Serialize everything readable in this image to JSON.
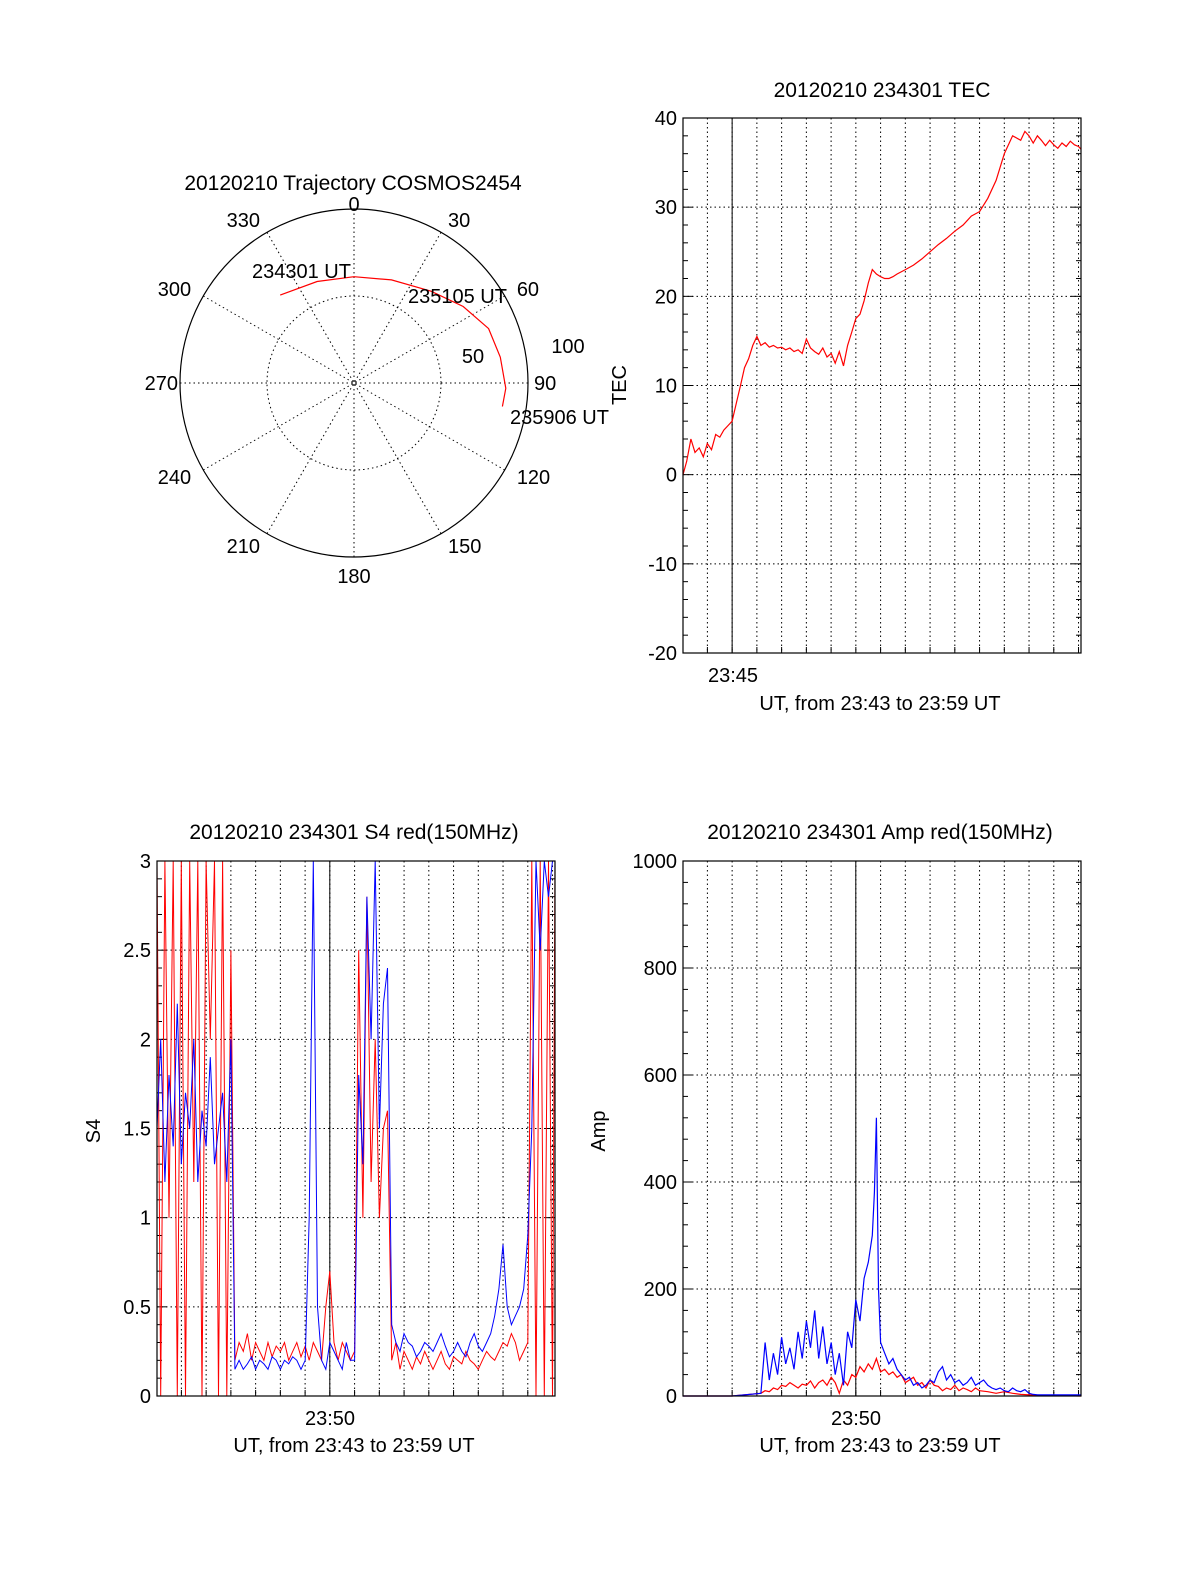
{
  "chart_data": [
    {
      "type": "polar",
      "title": "20120210 Trajectory COSMOS2454",
      "azimuth_labels": [
        "0",
        "30",
        "60",
        "90",
        "120",
        "150",
        "180",
        "210",
        "240",
        "270",
        "300",
        "330"
      ],
      "elevation_labels": [
        "50",
        "100"
      ],
      "trajectory_color": "#ff0000",
      "trajectory": [
        {
          "azimuth": 320,
          "zenith": 68
        },
        {
          "azimuth": 340,
          "zenith": 64
        },
        {
          "azimuth": 0,
          "zenith": 63
        },
        {
          "azimuth": 20,
          "zenith": 65
        },
        {
          "azimuth": 40,
          "zenith": 71
        },
        {
          "azimuth": 55,
          "zenith": 79
        },
        {
          "azimuth": 68,
          "zenith": 86
        },
        {
          "azimuth": 80,
          "zenith": 88
        },
        {
          "azimuth": 92,
          "zenith": 90
        },
        {
          "azimuth": 99,
          "zenith": 89
        }
      ],
      "annotations": [
        "234301 UT",
        "235105 UT",
        "235906 UT"
      ]
    },
    {
      "type": "line",
      "title": "20120210 234301 TEC",
      "xlabel": "UT, from 23:43 to 23:59 UT",
      "ylabel": "TEC",
      "xlim": [
        23.7169,
        23.985
      ],
      "ylim": [
        -20,
        40
      ],
      "yticks": [
        -20,
        -10,
        0,
        10,
        20,
        30,
        40
      ],
      "xtick_label": "23:45",
      "xtick_value": 23.75,
      "series": [
        {
          "color": "#ff0000",
          "x": [
            23.7169,
            23.7194,
            23.7222,
            23.725,
            23.7278,
            23.7306,
            23.7333,
            23.7361,
            23.7389,
            23.7417,
            23.7444,
            23.7472,
            23.75,
            23.7528,
            23.7556,
            23.7583,
            23.7611,
            23.7639,
            23.7667,
            23.7694,
            23.7722,
            23.775,
            23.7778,
            23.7806,
            23.7833,
            23.7861,
            23.7889,
            23.7917,
            23.7944,
            23.7972,
            23.8,
            23.8028,
            23.8056,
            23.8083,
            23.8111,
            23.8139,
            23.8167,
            23.8194,
            23.8222,
            23.825,
            23.8278,
            23.8306,
            23.8333,
            23.8361,
            23.8389,
            23.8417,
            23.8444,
            23.8472,
            23.85,
            23.8528,
            23.8556,
            23.8583,
            23.8611,
            23.8667,
            23.8722,
            23.8778,
            23.8833,
            23.8889,
            23.8944,
            23.9,
            23.9056,
            23.9111,
            23.9167,
            23.9222,
            23.9278,
            23.9333,
            23.9389,
            23.9444,
            23.9472,
            23.95,
            23.9528,
            23.9556,
            23.9583,
            23.9611,
            23.9639,
            23.9667,
            23.9694,
            23.9722,
            23.975,
            23.9778,
            23.9806,
            23.9833,
            23.985
          ],
          "y": [
            0,
            1.5,
            4,
            2.5,
            3,
            2,
            3.5,
            2.8,
            4.5,
            4.2,
            5,
            5.5,
            6,
            8,
            10,
            12,
            13,
            14.5,
            15.5,
            14.5,
            14.8,
            14.3,
            14.5,
            14.2,
            14.3,
            14,
            14.2,
            13.8,
            14,
            13.6,
            15.2,
            14.2,
            13.8,
            13.5,
            14.2,
            13.2,
            13.6,
            12.5,
            13.8,
            12.2,
            14.5,
            16,
            17.5,
            18,
            19.5,
            21.5,
            23,
            22.5,
            22.2,
            22,
            22,
            22.2,
            22.5,
            23,
            23.5,
            24.2,
            25,
            25.8,
            26.5,
            27.3,
            28,
            29,
            29.5,
            31,
            33,
            36,
            38,
            37.5,
            38.5,
            38,
            37.2,
            38,
            37.5,
            36.9,
            37.5,
            37,
            36.6,
            37.2,
            36.8,
            37.4,
            37,
            36.8,
            36.5
          ]
        }
      ]
    },
    {
      "type": "line",
      "title": "20120210 234301 S4 red(150MHz)",
      "xlabel": "UT, from 23:43 to 23:59 UT",
      "ylabel": "S4",
      "xlim": [
        23.7169,
        23.985
      ],
      "ylim": [
        0,
        3
      ],
      "yticks": [
        0,
        0.5,
        1,
        1.5,
        2,
        2.5,
        3
      ],
      "ytick_labels": [
        "0",
        "0.5",
        "1",
        "1.5",
        "2",
        "2.5",
        "3"
      ],
      "xtick_label": "23:50",
      "xtick_value": 23.8333,
      "series": [
        {
          "color": "#ff0000",
          "x": [
            23.7169,
            23.7194,
            23.7222,
            23.725,
            23.7278,
            23.7306,
            23.7333,
            23.7361,
            23.7389,
            23.7417,
            23.7444,
            23.7472,
            23.75,
            23.7528,
            23.7556,
            23.7583,
            23.7611,
            23.7639,
            23.7667,
            23.7694,
            23.7722,
            23.775,
            23.7778,
            23.7806,
            23.7833,
            23.7861,
            23.7889,
            23.7917,
            23.7944,
            23.7972,
            23.8,
            23.8028,
            23.8056,
            23.8083,
            23.8111,
            23.8139,
            23.8167,
            23.8194,
            23.8222,
            23.825,
            23.8278,
            23.8306,
            23.8333,
            23.8361,
            23.8389,
            23.8417,
            23.8444,
            23.8472,
            23.85,
            23.8528,
            23.8556,
            23.8583,
            23.8611,
            23.8639,
            23.8667,
            23.8694,
            23.8722,
            23.875,
            23.8778,
            23.8806,
            23.8833,
            23.8861,
            23.8889,
            23.8917,
            23.8944,
            23.8972,
            23.9,
            23.9028,
            23.9056,
            23.9083,
            23.9111,
            23.9139,
            23.9167,
            23.9194,
            23.9222,
            23.925,
            23.9278,
            23.9306,
            23.9333,
            23.9361,
            23.9389,
            23.9417,
            23.9444,
            23.9472,
            23.95,
            23.9528,
            23.9556,
            23.9583,
            23.9611,
            23.9639,
            23.9667,
            23.9694,
            23.9722,
            23.975,
            23.9778,
            23.9806,
            23.9833,
            23.985
          ],
          "y": [
            3,
            0,
            3,
            1,
            3,
            0,
            3,
            0,
            3,
            1.2,
            3,
            0,
            3,
            2,
            3,
            0,
            3,
            0,
            2.5,
            0.2,
            0.3,
            0.25,
            0.35,
            0.2,
            0.3,
            0.25,
            0.2,
            0.3,
            0.22,
            0.28,
            0.25,
            0.3,
            0.2,
            0.25,
            0.3,
            0.22,
            0.28,
            0.2,
            0.3,
            0.25,
            0.2,
            0.5,
            0.7,
            0.3,
            0.2,
            0.3,
            0.25,
            0.2,
            0.25,
            2.5,
            1.0,
            2.8,
            1.2,
            2.0,
            1.0,
            1.5,
            1.6,
            0.2,
            0.3,
            0.15,
            0.25,
            0.2,
            0.15,
            0.22,
            0.18,
            0.25,
            0.2,
            0.15,
            0.2,
            0.25,
            0.18,
            0.15,
            0.22,
            0.2,
            0.18,
            0.25,
            0.2,
            0.18,
            0.15,
            0.2,
            0.25,
            0.22,
            0.2,
            0.25,
            0.3,
            0.28,
            0.35,
            0.3,
            0.2,
            0.25,
            0.3,
            3,
            0,
            3,
            0,
            3,
            0,
            3
          ]
        },
        {
          "color": "#0000ff",
          "x": [
            23.7169,
            23.7194,
            23.7222,
            23.725,
            23.7278,
            23.7306,
            23.7333,
            23.7361,
            23.7389,
            23.7417,
            23.7444,
            23.7472,
            23.75,
            23.7528,
            23.7556,
            23.7583,
            23.7611,
            23.7639,
            23.7667,
            23.7694,
            23.7722,
            23.775,
            23.7778,
            23.7806,
            23.7833,
            23.7861,
            23.7889,
            23.7917,
            23.7944,
            23.7972,
            23.8,
            23.8028,
            23.8056,
            23.8083,
            23.8111,
            23.8139,
            23.8167,
            23.8194,
            23.8222,
            23.825,
            23.8278,
            23.8306,
            23.8333,
            23.8361,
            23.8389,
            23.8417,
            23.8444,
            23.8472,
            23.85,
            23.8528,
            23.8556,
            23.8583,
            23.8611,
            23.8639,
            23.8667,
            23.8694,
            23.8722,
            23.875,
            23.8778,
            23.8806,
            23.8833,
            23.8861,
            23.8889,
            23.8917,
            23.8944,
            23.8972,
            23.9,
            23.9028,
            23.9056,
            23.9083,
            23.9111,
            23.9139,
            23.9167,
            23.9194,
            23.9222,
            23.925,
            23.9278,
            23.9306,
            23.9333,
            23.9361,
            23.9389,
            23.9417,
            23.9444,
            23.9472,
            23.95,
            23.9528,
            23.9556,
            23.9583,
            23.9611,
            23.9639,
            23.9667,
            23.9694,
            23.9722,
            23.975,
            23.9778,
            23.9806,
            23.9833,
            23.985
          ],
          "y": [
            1.5,
            2.0,
            1.2,
            1.8,
            1.4,
            2.2,
            1.3,
            1.7,
            1.5,
            2.0,
            1.2,
            1.6,
            1.4,
            1.9,
            1.3,
            1.5,
            1.7,
            1.2,
            2.0,
            0.15,
            0.2,
            0.15,
            0.18,
            0.22,
            0.15,
            0.2,
            0.18,
            0.15,
            0.22,
            0.2,
            0.15,
            0.2,
            0.18,
            0.22,
            0.2,
            0.15,
            0.2,
            1.0,
            3.0,
            0.5,
            0.2,
            0.15,
            0.3,
            0.25,
            0.2,
            0.15,
            0.3,
            0.2,
            0.2,
            1.8,
            1.3,
            2.8,
            2.0,
            3.0,
            1.5,
            2.2,
            2.4,
            0.4,
            0.3,
            0.25,
            0.35,
            0.3,
            0.28,
            0.22,
            0.25,
            0.3,
            0.28,
            0.25,
            0.3,
            0.35,
            0.28,
            0.22,
            0.25,
            0.3,
            0.25,
            0.22,
            0.3,
            0.35,
            0.28,
            0.25,
            0.3,
            0.35,
            0.45,
            0.6,
            0.85,
            0.5,
            0.4,
            0.45,
            0.5,
            0.6,
            0.9,
            1.5,
            3,
            2.5,
            3,
            2.8,
            3,
            3
          ]
        }
      ]
    },
    {
      "type": "line",
      "title": "20120210 234301 Amp red(150MHz)",
      "xlabel": "UT, from 23:43 to 23:59 UT",
      "ylabel": "Amp",
      "xlim": [
        23.7169,
        23.985
      ],
      "ylim": [
        0,
        1000
      ],
      "yticks": [
        0,
        200,
        400,
        600,
        800,
        1000
      ],
      "xtick_label": "23:50",
      "xtick_value": 23.8333,
      "series": [
        {
          "color": "#ff0000",
          "x": [
            23.7169,
            23.75,
            23.7694,
            23.7722,
            23.775,
            23.7778,
            23.7806,
            23.7833,
            23.7861,
            23.7889,
            23.7917,
            23.7944,
            23.7972,
            23.8,
            23.8028,
            23.8056,
            23.8083,
            23.8111,
            23.8139,
            23.8167,
            23.8194,
            23.8222,
            23.825,
            23.8278,
            23.8306,
            23.8333,
            23.8361,
            23.8389,
            23.8417,
            23.8444,
            23.8472,
            23.85,
            23.8528,
            23.8556,
            23.8583,
            23.8611,
            23.8639,
            23.8667,
            23.8694,
            23.8722,
            23.875,
            23.8778,
            23.8806,
            23.8833,
            23.8861,
            23.8889,
            23.8917,
            23.8944,
            23.8972,
            23.9,
            23.9028,
            23.9056,
            23.9083,
            23.9111,
            23.9139,
            23.9167,
            23.9222,
            23.9278,
            23.9333,
            23.9389,
            23.9444,
            23.95,
            23.985
          ],
          "y": [
            0,
            0,
            5,
            10,
            8,
            15,
            12,
            20,
            18,
            25,
            20,
            15,
            22,
            20,
            28,
            15,
            25,
            30,
            20,
            35,
            25,
            5,
            30,
            20,
            40,
            35,
            55,
            45,
            60,
            50,
            70,
            45,
            50,
            40,
            45,
            35,
            40,
            25,
            30,
            35,
            20,
            25,
            15,
            30,
            20,
            18,
            10,
            15,
            12,
            20,
            10,
            15,
            12,
            8,
            15,
            10,
            8,
            5,
            8,
            5,
            3,
            2,
            0
          ]
        },
        {
          "color": "#0000ff",
          "x": [
            23.7169,
            23.75,
            23.7694,
            23.7722,
            23.775,
            23.7778,
            23.7806,
            23.7833,
            23.7861,
            23.7889,
            23.7917,
            23.7944,
            23.7972,
            23.8,
            23.8028,
            23.8056,
            23.8083,
            23.8111,
            23.8139,
            23.8167,
            23.8194,
            23.8222,
            23.825,
            23.8278,
            23.8306,
            23.8333,
            23.8361,
            23.8389,
            23.8417,
            23.8444,
            23.8458,
            23.8472,
            23.8486,
            23.85,
            23.8528,
            23.8556,
            23.8583,
            23.8611,
            23.8639,
            23.8667,
            23.8694,
            23.8722,
            23.875,
            23.8778,
            23.8806,
            23.8833,
            23.8861,
            23.8889,
            23.8917,
            23.8944,
            23.8972,
            23.9,
            23.9028,
            23.9056,
            23.9083,
            23.9111,
            23.9139,
            23.9167,
            23.9194,
            23.9222,
            23.925,
            23.9278,
            23.9306,
            23.9333,
            23.9361,
            23.9389,
            23.9417,
            23.9444,
            23.9472,
            23.95,
            23.9528,
            23.9556,
            23.985
          ],
          "y": [
            0,
            0,
            5,
            100,
            30,
            80,
            40,
            110,
            60,
            90,
            50,
            120,
            70,
            140,
            90,
            160,
            70,
            130,
            60,
            100,
            40,
            80,
            20,
            120,
            90,
            180,
            140,
            220,
            250,
            300,
            380,
            520,
            200,
            100,
            80,
            60,
            70,
            50,
            40,
            30,
            35,
            20,
            25,
            15,
            20,
            30,
            25,
            45,
            55,
            30,
            40,
            25,
            30,
            20,
            25,
            35,
            20,
            25,
            30,
            20,
            15,
            12,
            15,
            10,
            8,
            15,
            10,
            8,
            12,
            5,
            3,
            2,
            2
          ]
        }
      ]
    }
  ]
}
